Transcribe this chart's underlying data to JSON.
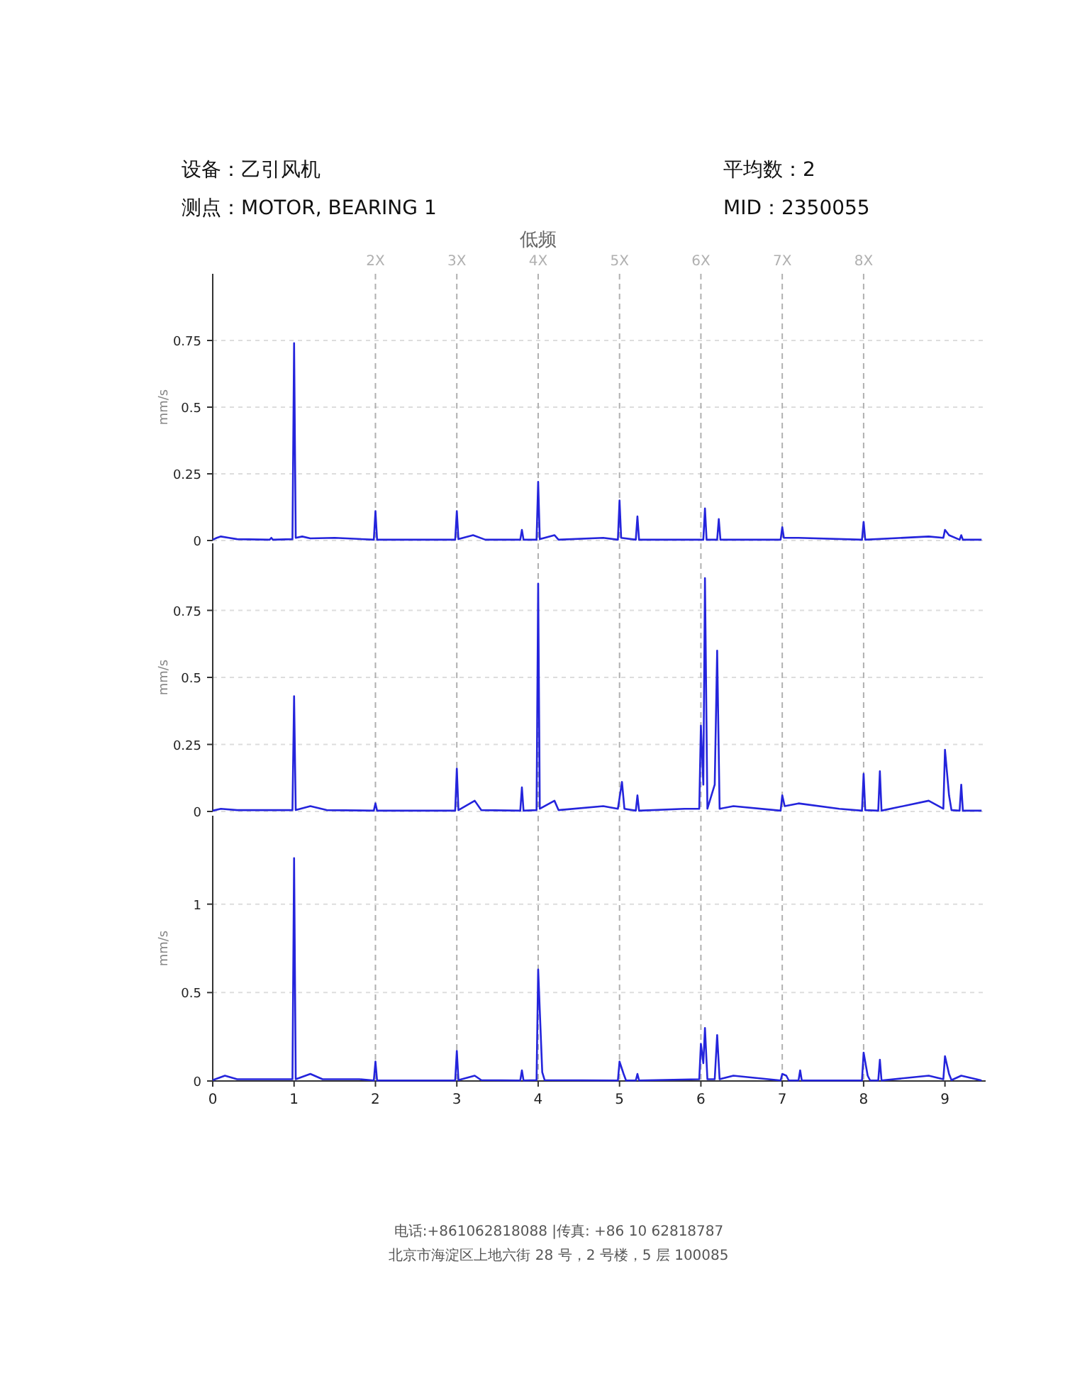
{
  "chart_data": [
    {
      "type": "line",
      "title": "低频",
      "ylabel": "mm/s",
      "xlim": [
        0,
        9.5
      ],
      "ylim": [
        0,
        1
      ],
      "yticks": [
        0,
        0.25,
        0.5,
        0.75
      ],
      "grid": "y",
      "tick_labels": "y",
      "line_style": "solid",
      "annotations": [
        "设备：乙引风机",
        "测点：MOTOR, BEARING 1",
        "平均数：2",
        "MID：2350055",
        "电话:+861062818088 |传真: +86 10 62818787",
        "北京市海淀区上地六街 28 号，2 号楼，5 层 100085"
      ],
      "ref_lines": [
        {
          "axis": "x",
          "value": 2,
          "label": "2X",
          "color": "#b0b0b0",
          "line_style": "dashed"
        },
        {
          "axis": "x",
          "value": 3,
          "label": "3X",
          "color": "#b0b0b0",
          "line_style": "dashed"
        },
        {
          "axis": "x",
          "value": 4,
          "label": "4X",
          "color": "#b0b0b0",
          "line_style": "dashed"
        },
        {
          "axis": "x",
          "value": 5,
          "label": "5X",
          "color": "#b0b0b0",
          "line_style": "dashed"
        },
        {
          "axis": "x",
          "value": 6,
          "label": "6X",
          "color": "#b0b0b0",
          "line_style": "dashed"
        },
        {
          "axis": "x",
          "value": 7,
          "label": "7X",
          "color": "#b0b0b0",
          "line_style": "dashed"
        },
        {
          "axis": "x",
          "value": 8,
          "label": "8X",
          "color": "#b0b0b0",
          "line_style": "dashed"
        }
      ],
      "series": [
        {
          "color": "#2424dc",
          "x": [
            0,
            0.05,
            0.1,
            0.2,
            0.3,
            0.7,
            0.72,
            0.74,
            0.98,
            1.0,
            1.02,
            1.1,
            1.2,
            1.5,
            1.98,
            2.0,
            2.02,
            2.98,
            3.0,
            3.02,
            3.2,
            3.35,
            3.78,
            3.8,
            3.82,
            3.98,
            4.0,
            4.02,
            4.2,
            4.25,
            4.8,
            4.98,
            5.0,
            5.02,
            5.2,
            5.22,
            5.24,
            6.03,
            6.05,
            6.07,
            6.2,
            6.22,
            6.24,
            6.98,
            7.0,
            7.02,
            7.2,
            7.98,
            8.0,
            8.02,
            8.8,
            8.98,
            9.0,
            9.05,
            9.18,
            9.2,
            9.22,
            9.45
          ],
          "values": [
            0.003,
            0.01,
            0.015,
            0.01,
            0.005,
            0.003,
            0.01,
            0.003,
            0.005,
            0.74,
            0.01,
            0.015,
            0.008,
            0.01,
            0.003,
            0.11,
            0.003,
            0.003,
            0.11,
            0.005,
            0.02,
            0.003,
            0.003,
            0.04,
            0.003,
            0.003,
            0.22,
            0.005,
            0.02,
            0.003,
            0.01,
            0.003,
            0.15,
            0.01,
            0.003,
            0.09,
            0.003,
            0.003,
            0.12,
            0.003,
            0.003,
            0.08,
            0.003,
            0.003,
            0.05,
            0.01,
            0.01,
            0.003,
            0.07,
            0.003,
            0.015,
            0.01,
            0.04,
            0.02,
            0.003,
            0.02,
            0.003,
            0.003
          ]
        }
      ]
    },
    {
      "type": "line",
      "ylabel": "mm/s",
      "xlim": [
        0,
        9.5
      ],
      "ylim": [
        0,
        1
      ],
      "yticks": [
        0,
        0.25,
        0.5,
        0.75
      ],
      "grid": "y",
      "tick_labels": "y",
      "line_style": "solid",
      "ref_lines": [
        {
          "axis": "x",
          "value": 2,
          "color": "#b0b0b0",
          "line_style": "dashed"
        },
        {
          "axis": "x",
          "value": 3,
          "color": "#b0b0b0",
          "line_style": "dashed"
        },
        {
          "axis": "x",
          "value": 4,
          "color": "#b0b0b0",
          "line_style": "dashed"
        },
        {
          "axis": "x",
          "value": 5,
          "color": "#b0b0b0",
          "line_style": "dashed"
        },
        {
          "axis": "x",
          "value": 6,
          "color": "#b0b0b0",
          "line_style": "dashed"
        },
        {
          "axis": "x",
          "value": 7,
          "color": "#b0b0b0",
          "line_style": "dashed"
        },
        {
          "axis": "x",
          "value": 8,
          "color": "#b0b0b0",
          "line_style": "dashed"
        }
      ],
      "series": [
        {
          "color": "#2424dc",
          "x": [
            0,
            0.1,
            0.3,
            0.98,
            1.0,
            1.02,
            1.2,
            1.4,
            1.98,
            2.0,
            2.02,
            2.98,
            3.0,
            3.02,
            3.22,
            3.3,
            3.78,
            3.8,
            3.82,
            3.98,
            4.0,
            4.02,
            4.2,
            4.25,
            4.8,
            4.98,
            5.03,
            5.06,
            5.2,
            5.22,
            5.24,
            5.8,
            5.98,
            6.0,
            6.03,
            6.05,
            6.08,
            6.17,
            6.2,
            6.23,
            6.4,
            6.98,
            7.0,
            7.03,
            7.2,
            7.7,
            7.98,
            8.0,
            8.02,
            8.18,
            8.2,
            8.22,
            8.8,
            8.98,
            9.0,
            9.05,
            9.08,
            9.18,
            9.2,
            9.22,
            9.45
          ],
          "values": [
            0.003,
            0.01,
            0.005,
            0.005,
            0.43,
            0.005,
            0.02,
            0.005,
            0.003,
            0.03,
            0.003,
            0.003,
            0.16,
            0.005,
            0.04,
            0.005,
            0.003,
            0.09,
            0.003,
            0.005,
            0.85,
            0.01,
            0.04,
            0.005,
            0.02,
            0.01,
            0.11,
            0.01,
            0.003,
            0.06,
            0.003,
            0.01,
            0.01,
            0.32,
            0.1,
            0.87,
            0.01,
            0.1,
            0.6,
            0.01,
            0.02,
            0.003,
            0.06,
            0.02,
            0.03,
            0.01,
            0.003,
            0.14,
            0.005,
            0.003,
            0.15,
            0.003,
            0.04,
            0.01,
            0.23,
            0.06,
            0.005,
            0.003,
            0.1,
            0.003,
            0.003
          ]
        }
      ]
    },
    {
      "type": "line",
      "ylabel": "mm/s",
      "xlim": [
        0,
        9.5
      ],
      "ylim": [
        0,
        1.5
      ],
      "yticks": [
        0,
        0.5,
        1
      ],
      "xticks": [
        0,
        1,
        2,
        3,
        4,
        5,
        6,
        7,
        8,
        9
      ],
      "grid": "y",
      "line_style": "solid",
      "ref_lines": [
        {
          "axis": "x",
          "value": 2,
          "color": "#b0b0b0",
          "line_style": "dashed"
        },
        {
          "axis": "x",
          "value": 3,
          "color": "#b0b0b0",
          "line_style": "dashed"
        },
        {
          "axis": "x",
          "value": 4,
          "color": "#b0b0b0",
          "line_style": "dashed"
        },
        {
          "axis": "x",
          "value": 5,
          "color": "#b0b0b0",
          "line_style": "dashed"
        },
        {
          "axis": "x",
          "value": 6,
          "color": "#b0b0b0",
          "line_style": "dashed"
        },
        {
          "axis": "x",
          "value": 7,
          "color": "#b0b0b0",
          "line_style": "dashed"
        },
        {
          "axis": "x",
          "value": 8,
          "color": "#b0b0b0",
          "line_style": "dashed"
        }
      ],
      "series": [
        {
          "color": "#2424dc",
          "x": [
            0,
            0.15,
            0.3,
            0.98,
            1.0,
            1.02,
            1.2,
            1.35,
            1.8,
            1.98,
            2.0,
            2.02,
            2.98,
            3.0,
            3.02,
            3.22,
            3.3,
            3.78,
            3.8,
            3.82,
            3.98,
            4.0,
            4.05,
            4.08,
            4.98,
            5.0,
            5.05,
            5.08,
            5.2,
            5.22,
            5.24,
            5.98,
            6.0,
            6.03,
            6.05,
            6.08,
            6.17,
            6.2,
            6.23,
            6.4,
            6.98,
            7.0,
            7.05,
            7.08,
            7.2,
            7.22,
            7.24,
            7.98,
            8.0,
            8.05,
            8.08,
            8.18,
            8.2,
            8.22,
            8.8,
            8.98,
            9.0,
            9.05,
            9.08,
            9.2,
            9.45
          ],
          "values": [
            0.005,
            0.03,
            0.01,
            0.01,
            1.26,
            0.01,
            0.04,
            0.01,
            0.01,
            0.003,
            0.11,
            0.003,
            0.003,
            0.17,
            0.005,
            0.03,
            0.005,
            0.003,
            0.06,
            0.003,
            0.005,
            0.63,
            0.05,
            0.005,
            0.003,
            0.11,
            0.04,
            0.003,
            0.003,
            0.04,
            0.003,
            0.01,
            0.21,
            0.1,
            0.3,
            0.01,
            0.01,
            0.26,
            0.01,
            0.03,
            0.003,
            0.04,
            0.03,
            0.003,
            0.003,
            0.06,
            0.003,
            0.003,
            0.16,
            0.03,
            0.003,
            0.003,
            0.12,
            0.003,
            0.03,
            0.01,
            0.14,
            0.04,
            0.005,
            0.03,
            0.003
          ]
        }
      ]
    }
  ]
}
